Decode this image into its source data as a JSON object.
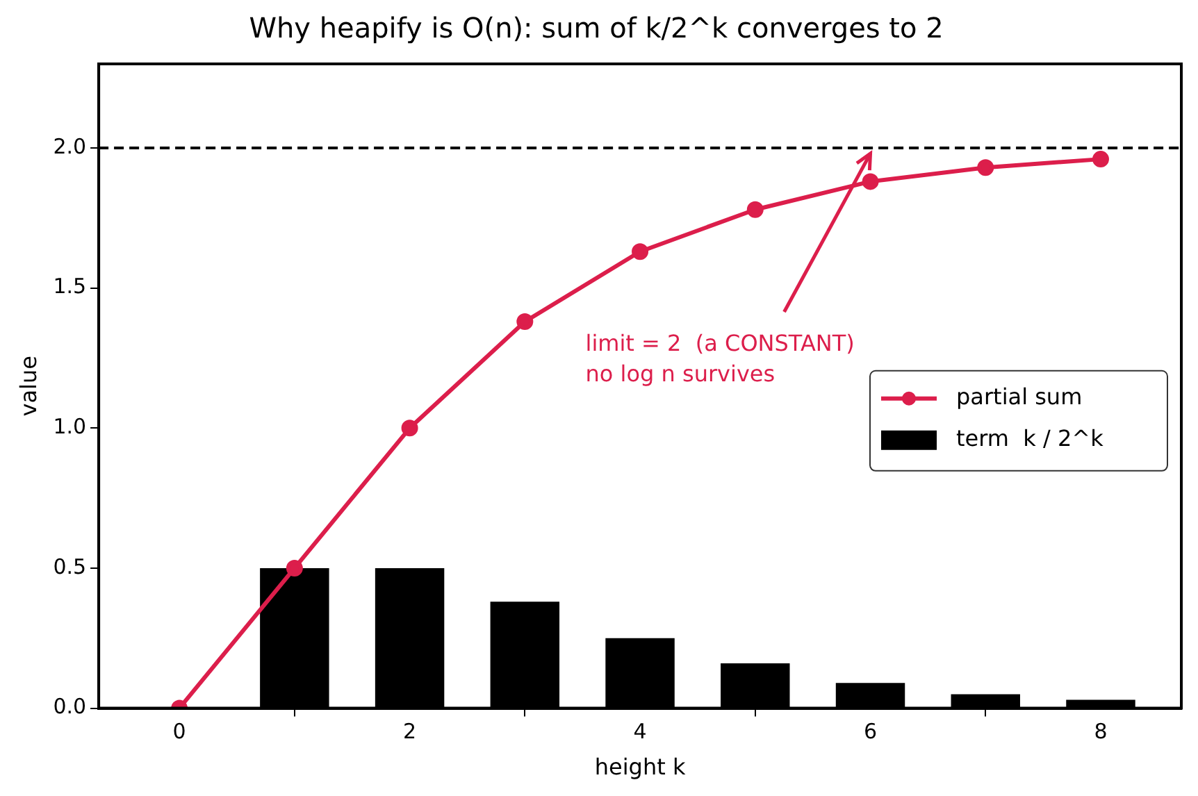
{
  "chart_data": {
    "type": "bar",
    "title": "Why heapify is O(n): sum of k/2^k converges to 2",
    "xlabel": "height k",
    "ylabel": "value",
    "xlim": [
      -0.7,
      8.7
    ],
    "xticks": [
      0,
      2,
      4,
      6,
      8
    ],
    "ylim": [
      0,
      2.3
    ],
    "yticks": [
      {
        "value": 0,
        "label": "0.0"
      },
      {
        "value": 0.5,
        "label": "0.5"
      },
      {
        "value": 1,
        "label": "1.0"
      },
      {
        "value": 1.5,
        "label": "1.5"
      },
      {
        "value": 2,
        "label": "2.0"
      }
    ],
    "series": [
      {
        "name": "partial sum",
        "type": "line",
        "color": "#dc1e4b",
        "x": [
          0,
          1,
          2,
          3,
          4,
          5,
          6,
          7,
          8
        ],
        "values": [
          0,
          0.5,
          1,
          1.38,
          1.63,
          1.78,
          1.88,
          1.93,
          1.96
        ]
      },
      {
        "name": "term  k / 2^k",
        "color": "#000000",
        "x": [
          1,
          2,
          3,
          4,
          5,
          6,
          7,
          8
        ],
        "values": [
          0.5,
          0.5,
          0.38,
          0.25,
          0.16,
          0.09,
          0.05,
          0.03
        ]
      }
    ],
    "ref_lines": [
      {
        "axis": "y",
        "value": 2,
        "color": "#000000",
        "line_style": "dashed"
      }
    ],
    "annotations": [
      {
        "text": "limit = 2  (a CONSTANT)\nno log n survives",
        "x": 6,
        "y": 1.98
      }
    ],
    "marker": "circle",
    "grid": false,
    "legend": "right"
  }
}
